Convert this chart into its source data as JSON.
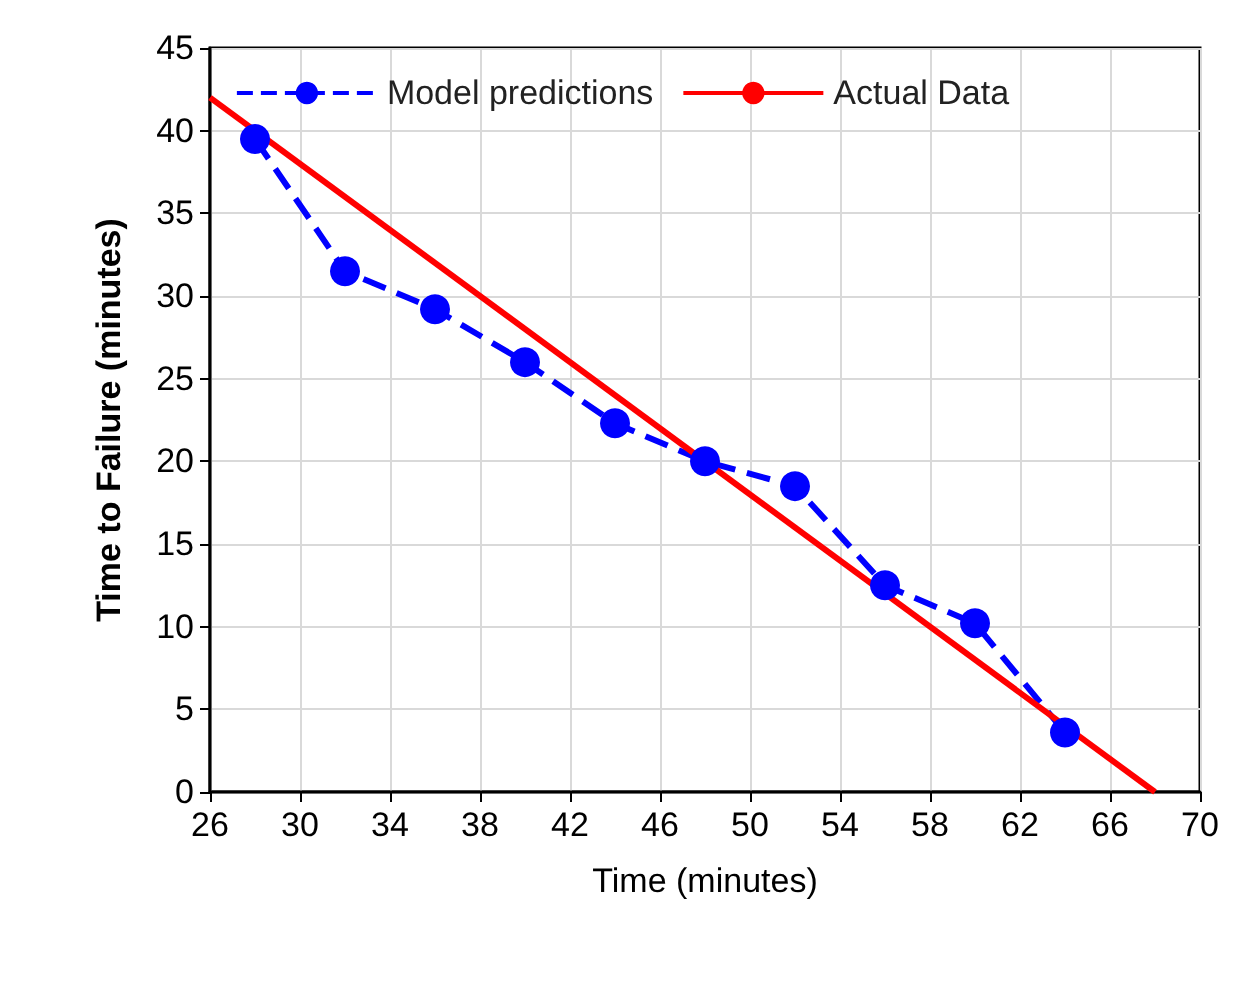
{
  "chart_data": {
    "type": "line",
    "xlabel": "Time (minutes)",
    "ylabel": "Time to Failure (minutes)",
    "xlim": [
      26,
      70
    ],
    "xticks": [
      26,
      30,
      34,
      38,
      42,
      46,
      50,
      54,
      58,
      62,
      66,
      70
    ],
    "ylim": [
      0,
      45
    ],
    "yticks": [
      0,
      5,
      10,
      15,
      20,
      25,
      30,
      35,
      40,
      45
    ],
    "grid": true,
    "legend": "top",
    "series": [
      {
        "name": "Model predictions",
        "color": "#0000ff",
        "marker": "circle",
        "line_style": "dashed",
        "x": [
          28,
          32,
          36,
          40,
          44,
          48,
          52,
          56,
          60,
          64
        ],
        "values": [
          39.5,
          31.5,
          29.2,
          26,
          22.3,
          20,
          18.5,
          12.5,
          10.2,
          3.6
        ]
      },
      {
        "name": "Actual Data",
        "color": "#ff0000",
        "marker": "none",
        "line_style": "solid",
        "x": [
          26,
          68
        ],
        "values": [
          42,
          0
        ]
      }
    ]
  }
}
